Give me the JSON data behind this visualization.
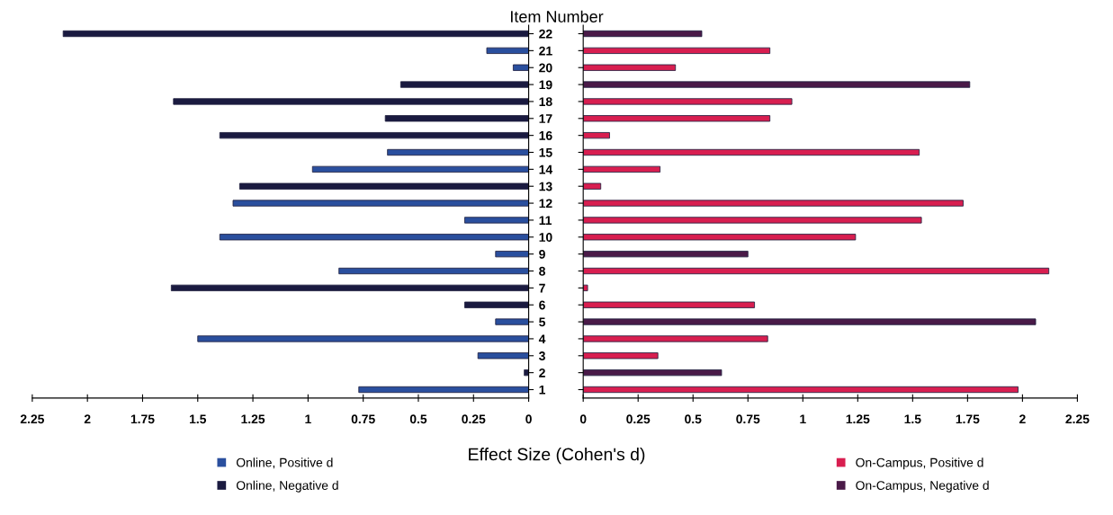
{
  "chart_data": [
    {
      "type": "bar",
      "orientation": "horizontal",
      "ylabel": "Item Number",
      "xlabel": "Effect Size (Cohen's d)",
      "categories": [
        "22",
        "21",
        "20",
        "19",
        "18",
        "17",
        "16",
        "15",
        "14",
        "13",
        "12",
        "11",
        "10",
        "9",
        "8",
        "7",
        "6",
        "5",
        "4",
        "3",
        "2",
        "1"
      ],
      "series": [
        {
          "name": "Online, Positive d",
          "color": "#2a4f9e",
          "values": [
            null,
            0.19,
            0.07,
            null,
            null,
            null,
            null,
            0.64,
            0.98,
            null,
            1.34,
            0.29,
            1.4,
            0.15,
            0.86,
            null,
            null,
            0.15,
            1.5,
            0.23,
            null,
            0.77
          ]
        },
        {
          "name": "Online, Negative d",
          "color": "#1a1a40",
          "values": [
            2.11,
            null,
            null,
            0.58,
            1.61,
            0.65,
            1.4,
            null,
            null,
            1.31,
            null,
            null,
            null,
            null,
            null,
            1.62,
            0.29,
            null,
            null,
            null,
            0.02,
            null
          ]
        }
      ],
      "xlim": [
        2.25,
        0
      ],
      "xticks": [
        2.25,
        2,
        1.75,
        1.5,
        1.25,
        1,
        0.75,
        0.5,
        0.25,
        0
      ],
      "legend": "bottom left"
    },
    {
      "type": "bar",
      "orientation": "horizontal",
      "categories": [
        "22",
        "21",
        "20",
        "19",
        "18",
        "17",
        "16",
        "15",
        "14",
        "13",
        "12",
        "11",
        "10",
        "9",
        "8",
        "7",
        "6",
        "5",
        "4",
        "3",
        "2",
        "1"
      ],
      "series": [
        {
          "name": "On-Campus, Positive d",
          "color": "#d81e50",
          "values": [
            null,
            0.85,
            0.42,
            null,
            0.95,
            0.85,
            0.12,
            1.53,
            0.35,
            0.08,
            1.73,
            1.54,
            1.24,
            null,
            2.12,
            0.02,
            0.78,
            null,
            0.84,
            0.34,
            null,
            1.98
          ]
        },
        {
          "name": "On-Campus, Negative d",
          "color": "#4a1a48",
          "values": [
            0.54,
            null,
            null,
            1.76,
            null,
            null,
            null,
            null,
            null,
            null,
            null,
            null,
            null,
            0.75,
            null,
            null,
            null,
            2.06,
            null,
            null,
            0.63,
            null
          ]
        }
      ],
      "xlim": [
        0,
        2.25
      ],
      "xticks": [
        0,
        0.25,
        0.5,
        0.75,
        1,
        1.25,
        1.5,
        1.75,
        2,
        2.25
      ],
      "tick_labels": "x",
      "legend": "bottom right"
    }
  ]
}
